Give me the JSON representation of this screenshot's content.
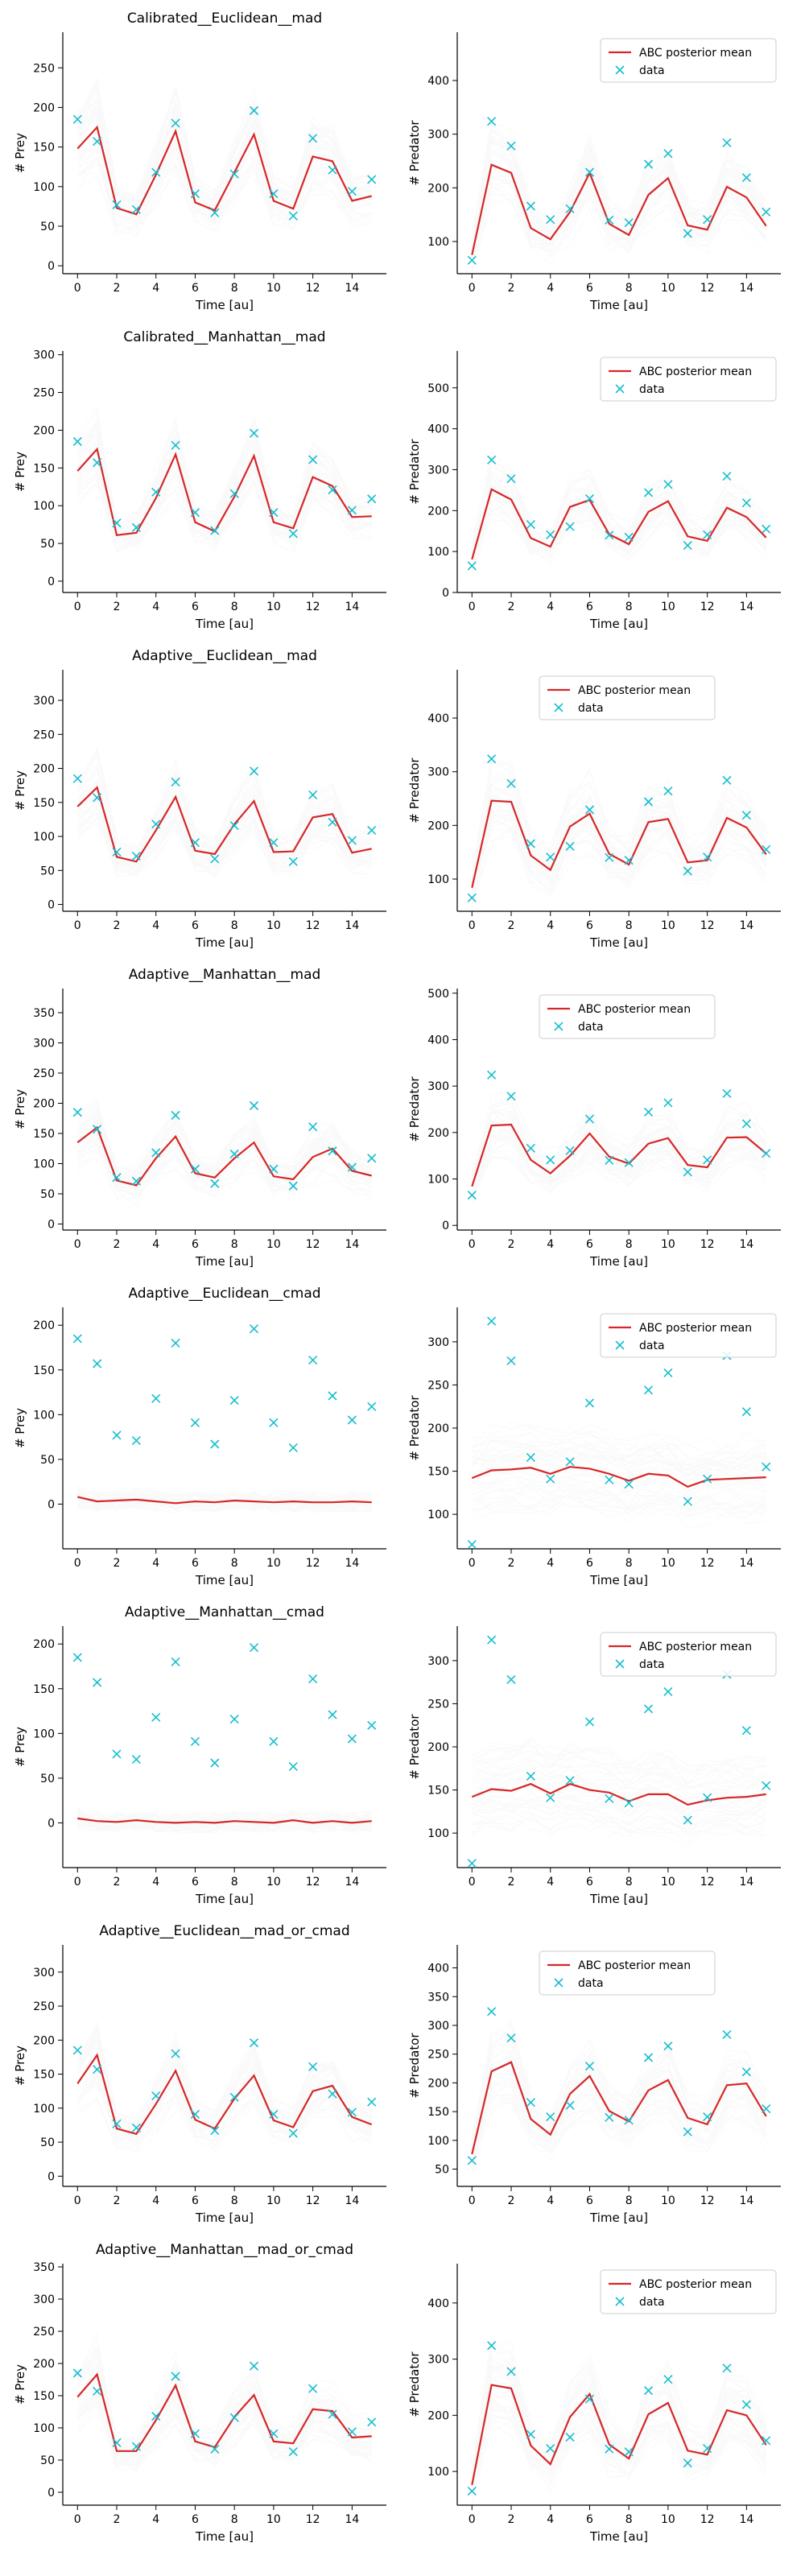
{
  "figure": {
    "background": "#ffffff"
  },
  "styles": {
    "mean_color": "#d62728",
    "data_color": "#17becf",
    "sample_color": "#c8c8c8"
  },
  "shared": {
    "xlabel": "Time [au]",
    "prey_ylabel": "# Prey",
    "predator_ylabel": "# Predator",
    "legend_mean": "ABC posterior mean",
    "legend_data": "data",
    "x": [
      0,
      1,
      2,
      3,
      4,
      5,
      6,
      7,
      8,
      9,
      10,
      11,
      12,
      13,
      14,
      15
    ],
    "x_ticks": [
      0,
      2,
      4,
      6,
      8,
      10,
      12,
      14
    ]
  },
  "chart_data": [
    {
      "title": "Calibrated__Euclidean__mad",
      "type": "line",
      "prey": {
        "ylim": [
          -10,
          295
        ],
        "yticks": [
          0,
          50,
          100,
          150,
          200,
          250
        ],
        "data": [
          185,
          157,
          77,
          71,
          118,
          180,
          91,
          67,
          116,
          196,
          91,
          63,
          161,
          121,
          94,
          109
        ],
        "mean": [
          148,
          175,
          73,
          65,
          115,
          170,
          80,
          70,
          118,
          166,
          82,
          72,
          138,
          132,
          82,
          88
        ]
      },
      "predator": {
        "ylim": [
          40,
          490
        ],
        "yticks": [
          100,
          200,
          300,
          400
        ],
        "legend": "top-right",
        "data": [
          65,
          324,
          278,
          166,
          141,
          161,
          229,
          140,
          135,
          244,
          264,
          115,
          141,
          284,
          219,
          155
        ],
        "mean": [
          75,
          243,
          228,
          125,
          104,
          155,
          228,
          133,
          112,
          187,
          218,
          130,
          122,
          202,
          182,
          129
        ]
      }
    },
    {
      "title": "Calibrated__Manhattan__mad",
      "type": "line",
      "prey": {
        "ylim": [
          -15,
          305
        ],
        "yticks": [
          0,
          50,
          100,
          150,
          200,
          250,
          300
        ],
        "data": [
          185,
          157,
          77,
          71,
          118,
          180,
          91,
          67,
          116,
          196,
          91,
          63,
          161,
          121,
          94,
          109
        ],
        "mean": [
          146,
          175,
          61,
          64,
          110,
          168,
          78,
          66,
          112,
          166,
          78,
          70,
          138,
          126,
          85,
          86
        ]
      },
      "predator": {
        "ylim": [
          0,
          590
        ],
        "yticks": [
          0,
          100,
          200,
          300,
          400,
          500
        ],
        "legend": "top-right",
        "data": [
          65,
          324,
          278,
          166,
          141,
          161,
          229,
          140,
          135,
          244,
          264,
          115,
          141,
          284,
          219,
          155
        ],
        "mean": [
          81,
          252,
          227,
          133,
          112,
          209,
          226,
          142,
          118,
          197,
          223,
          137,
          126,
          207,
          184,
          134
        ]
      }
    },
    {
      "title": "Adaptive__Euclidean__mad",
      "type": "line",
      "prey": {
        "ylim": [
          -10,
          345
        ],
        "yticks": [
          0,
          50,
          100,
          150,
          200,
          250,
          300
        ],
        "data": [
          185,
          157,
          77,
          71,
          118,
          180,
          91,
          67,
          116,
          196,
          91,
          63,
          161,
          121,
          94,
          109
        ],
        "mean": [
          144,
          172,
          70,
          63,
          109,
          158,
          79,
          74,
          118,
          152,
          77,
          78,
          128,
          133,
          76,
          82
        ]
      },
      "predator": {
        "ylim": [
          40,
          490
        ],
        "yticks": [
          100,
          200,
          300,
          400
        ],
        "legend": "top-center",
        "data": [
          65,
          324,
          278,
          166,
          141,
          161,
          229,
          140,
          135,
          244,
          264,
          115,
          141,
          284,
          219,
          155
        ],
        "mean": [
          84,
          246,
          244,
          144,
          117,
          198,
          222,
          147,
          127,
          206,
          212,
          131,
          135,
          214,
          196,
          146
        ]
      }
    },
    {
      "title": "Adaptive__Manhattan__mad",
      "type": "line",
      "prey": {
        "ylim": [
          -10,
          390
        ],
        "yticks": [
          0,
          50,
          100,
          150,
          200,
          250,
          300,
          350
        ],
        "data": [
          185,
          157,
          77,
          71,
          118,
          180,
          91,
          67,
          116,
          196,
          91,
          63,
          161,
          121,
          94,
          109
        ],
        "mean": [
          135,
          160,
          72,
          64,
          109,
          145,
          84,
          77,
          109,
          135,
          79,
          74,
          111,
          125,
          88,
          80
        ]
      },
      "predator": {
        "ylim": [
          -10,
          510
        ],
        "yticks": [
          0,
          100,
          200,
          300,
          400,
          500
        ],
        "legend": "top-center",
        "data": [
          65,
          324,
          278,
          166,
          141,
          161,
          229,
          140,
          135,
          244,
          264,
          115,
          141,
          284,
          219,
          155
        ],
        "mean": [
          84,
          215,
          217,
          141,
          112,
          150,
          198,
          148,
          133,
          176,
          188,
          130,
          125,
          189,
          190,
          155
        ]
      }
    },
    {
      "title": "Adaptive__Euclidean__cmad",
      "type": "line",
      "prey": {
        "ylim": [
          -50,
          220
        ],
        "yticks": [
          0,
          50,
          100,
          150,
          200
        ],
        "data": [
          185,
          157,
          77,
          71,
          118,
          180,
          91,
          67,
          116,
          196,
          91,
          63,
          161,
          121,
          94,
          109
        ],
        "mean": [
          8,
          3,
          4,
          5,
          3,
          1,
          3,
          2,
          4,
          3,
          2,
          3,
          2,
          2,
          3,
          2
        ]
      },
      "predator": {
        "ylim": [
          60,
          340
        ],
        "yticks": [
          100,
          150,
          200,
          250,
          300
        ],
        "legend": "top-right",
        "data": [
          65,
          324,
          278,
          166,
          141,
          161,
          229,
          140,
          135,
          244,
          264,
          115,
          141,
          284,
          219,
          155
        ],
        "mean": [
          142,
          151,
          152,
          154,
          147,
          155,
          153,
          147,
          139,
          147,
          145,
          132,
          140,
          141,
          142,
          143
        ]
      }
    },
    {
      "title": "Adaptive__Manhattan__cmad",
      "type": "line",
      "prey": {
        "ylim": [
          -50,
          220
        ],
        "yticks": [
          0,
          50,
          100,
          150,
          200
        ],
        "data": [
          185,
          157,
          77,
          71,
          118,
          180,
          91,
          67,
          116,
          196,
          91,
          63,
          161,
          121,
          94,
          109
        ],
        "mean": [
          5,
          2,
          1,
          3,
          1,
          0,
          1,
          0,
          2,
          1,
          0,
          3,
          0,
          2,
          0,
          2
        ]
      },
      "predator": {
        "ylim": [
          60,
          340
        ],
        "yticks": [
          100,
          150,
          200,
          250,
          300
        ],
        "legend": "top-right",
        "data": [
          65,
          324,
          278,
          166,
          141,
          161,
          229,
          140,
          135,
          244,
          264,
          115,
          141,
          284,
          219,
          155
        ],
        "mean": [
          142,
          151,
          149,
          157,
          146,
          157,
          150,
          147,
          137,
          145,
          145,
          133,
          138,
          141,
          142,
          145
        ]
      }
    },
    {
      "title": "Adaptive__Euclidean__mad_or_cmad",
      "type": "line",
      "prey": {
        "ylim": [
          -15,
          340
        ],
        "yticks": [
          0,
          50,
          100,
          150,
          200,
          250,
          300
        ],
        "data": [
          185,
          157,
          77,
          71,
          118,
          180,
          91,
          67,
          116,
          196,
          91,
          63,
          161,
          121,
          94,
          109
        ],
        "mean": [
          136,
          178,
          70,
          62,
          106,
          155,
          83,
          70,
          114,
          148,
          82,
          72,
          125,
          133,
          87,
          76
        ]
      },
      "predator": {
        "ylim": [
          20,
          440
        ],
        "yticks": [
          50,
          100,
          150,
          200,
          250,
          300,
          350,
          400
        ],
        "legend": "top-center",
        "data": [
          65,
          324,
          278,
          166,
          141,
          161,
          229,
          140,
          135,
          244,
          264,
          115,
          141,
          284,
          219,
          155
        ],
        "mean": [
          76,
          220,
          236,
          137,
          110,
          181,
          212,
          151,
          133,
          187,
          205,
          139,
          128,
          196,
          199,
          142
        ]
      }
    },
    {
      "title": "Adaptive__Manhattan__mad_or_cmad",
      "type": "line",
      "prey": {
        "ylim": [
          -20,
          355
        ],
        "yticks": [
          0,
          50,
          100,
          150,
          200,
          250,
          300,
          350
        ],
        "data": [
          185,
          157,
          77,
          71,
          118,
          180,
          91,
          67,
          116,
          196,
          91,
          63,
          161,
          121,
          94,
          109
        ],
        "mean": [
          148,
          183,
          64,
          64,
          112,
          166,
          79,
          70,
          117,
          151,
          79,
          76,
          129,
          126,
          85,
          87
        ]
      },
      "predator": {
        "ylim": [
          40,
          470
        ],
        "yticks": [
          100,
          200,
          300,
          400
        ],
        "legend": "top-right",
        "data": [
          65,
          324,
          278,
          166,
          141,
          161,
          229,
          140,
          135,
          244,
          264,
          115,
          141,
          284,
          219,
          155
        ],
        "mean": [
          76,
          254,
          248,
          146,
          113,
          197,
          238,
          148,
          123,
          202,
          222,
          137,
          130,
          209,
          200,
          147
        ]
      }
    }
  ]
}
